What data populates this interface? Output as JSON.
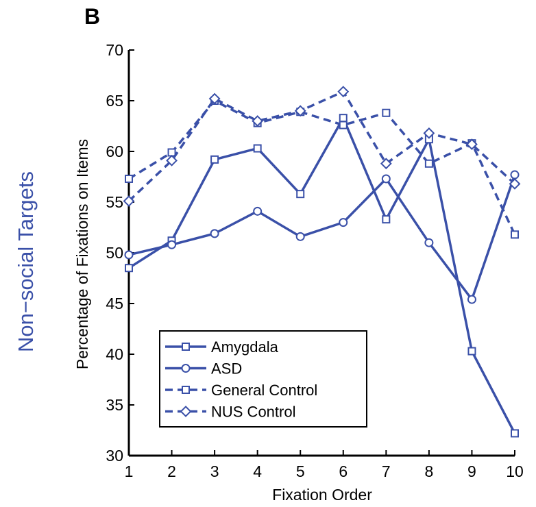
{
  "panel_label": "B",
  "side_label": "Non−social Targets",
  "colors": {
    "series": "#3a50a8",
    "side_label": "#3a50a8",
    "axis": "#000000"
  },
  "chart_data": {
    "type": "line",
    "xlabel": "Fixation Order",
    "ylabel": "Percentage of Fixations on Items",
    "x": [
      1,
      2,
      3,
      4,
      5,
      6,
      7,
      8,
      9,
      10
    ],
    "xlim": [
      1,
      10
    ],
    "ylim": [
      30,
      70
    ],
    "xticks": [
      1,
      2,
      3,
      4,
      5,
      6,
      7,
      8,
      9,
      10
    ],
    "yticks": [
      30,
      35,
      40,
      45,
      50,
      55,
      60,
      65,
      70
    ],
    "grid": false,
    "legend_position": "bottom-left",
    "series": [
      {
        "name": "Amygdala",
        "line": "solid",
        "marker": "square",
        "values": [
          48.5,
          51.2,
          59.2,
          60.3,
          55.8,
          63.3,
          53.3,
          61.2,
          40.3,
          32.2
        ]
      },
      {
        "name": "ASD",
        "line": "solid",
        "marker": "circle",
        "values": [
          49.8,
          50.8,
          51.9,
          54.1,
          51.6,
          53.0,
          57.3,
          51.0,
          45.4,
          57.7
        ]
      },
      {
        "name": "General Control",
        "line": "dashed",
        "marker": "square",
        "values": [
          57.3,
          59.9,
          65.0,
          62.8,
          63.9,
          62.6,
          63.8,
          58.8,
          60.8,
          51.8
        ]
      },
      {
        "name": "NUS Control",
        "line": "dashed",
        "marker": "diamond",
        "values": [
          55.1,
          59.1,
          65.2,
          63.0,
          64.0,
          65.9,
          58.8,
          61.8,
          60.7,
          56.8
        ]
      }
    ]
  }
}
